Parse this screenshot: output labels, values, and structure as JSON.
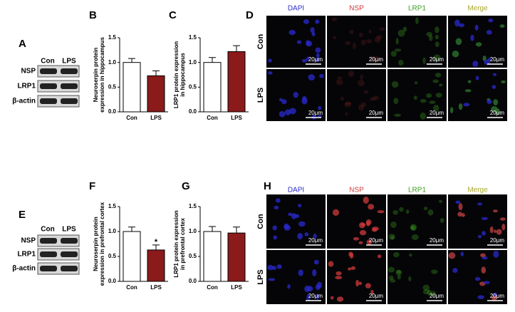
{
  "chart_data": [
    {
      "type": "bar",
      "panel": "B",
      "ylabel": [
        "Neuroserpin protein",
        "expression in hippocampus"
      ],
      "categories": [
        "Con",
        "LPS"
      ],
      "values": [
        1.0,
        0.73
      ],
      "errors": [
        0.08,
        0.1
      ],
      "colors": [
        "#ffffff",
        "#8b1a1a"
      ],
      "ylim": [
        0,
        1.5
      ],
      "yticks": [
        {
          "value": 0,
          "label": "0.0"
        },
        {
          "value": 0.5,
          "label": "0.5"
        },
        {
          "value": 1,
          "label": "1.0"
        },
        {
          "value": 1.5,
          "label": "1.5"
        }
      ]
    },
    {
      "type": "bar",
      "panel": "C",
      "ylabel": [
        "LRP1 protein expression",
        "in hippocampus"
      ],
      "categories": [
        "Con",
        "LPS"
      ],
      "values": [
        1.0,
        1.22
      ],
      "errors": [
        0.1,
        0.12
      ],
      "colors": [
        "#ffffff",
        "#8b1a1a"
      ],
      "ylim": [
        0,
        1.5
      ],
      "yticks": [
        {
          "value": 0,
          "label": "0.0"
        },
        {
          "value": 0.5,
          "label": "0.5"
        },
        {
          "value": 1,
          "label": "1.0"
        },
        {
          "value": 1.5,
          "label": "1.5"
        }
      ]
    },
    {
      "type": "bar",
      "panel": "F",
      "ylabel": [
        "Neuroserpin protein",
        "expression in prefrontal cortex"
      ],
      "categories": [
        "Con",
        "LPS"
      ],
      "values": [
        1.0,
        0.63
      ],
      "errors": [
        0.09,
        0.1
      ],
      "significance": [
        null,
        "*"
      ],
      "colors": [
        "#ffffff",
        "#8b1a1a"
      ],
      "ylim": [
        0,
        1.5
      ],
      "yticks": [
        {
          "value": 0,
          "label": "0.0"
        },
        {
          "value": 0.5,
          "label": "0.5"
        },
        {
          "value": 1,
          "label": "1.0"
        },
        {
          "value": 1.5,
          "label": "1.5"
        }
      ]
    },
    {
      "type": "bar",
      "panel": "G",
      "ylabel": [
        "LRP1 protein expression",
        "in prefrontal cortex"
      ],
      "categories": [
        "Con",
        "LPS"
      ],
      "values": [
        1.0,
        0.97
      ],
      "errors": [
        0.1,
        0.12
      ],
      "colors": [
        "#ffffff",
        "#8b1a1a"
      ],
      "ylim": [
        0,
        1.5
      ],
      "yticks": [
        {
          "value": 0,
          "label": "0.0"
        },
        {
          "value": 0.5,
          "label": "0.5"
        },
        {
          "value": 1,
          "label": "1.0"
        },
        {
          "value": 1.5,
          "label": "1.5"
        }
      ]
    }
  ],
  "blots": [
    {
      "panel": "A",
      "lanes": [
        "Con",
        "LPS"
      ],
      "rows": [
        "NSP",
        "LRP1",
        "β-actin"
      ]
    },
    {
      "panel": "E",
      "lanes": [
        "Con",
        "LPS"
      ],
      "rows": [
        "NSP",
        "LRP1",
        "β-actin"
      ]
    }
  ],
  "micrographs": [
    {
      "panel": "D",
      "channels": [
        "DAPI",
        "NSP",
        "LRP1",
        "Merge"
      ],
      "channel_colors": [
        "#2a2ad0",
        "#d03a3a",
        "#3c9c1c",
        "#a8a82a"
      ],
      "conditions": [
        "Con",
        "LPS"
      ],
      "scale_bar": "20μm"
    },
    {
      "panel": "H",
      "channels": [
        "DAPI",
        "NSP",
        "LRP1",
        "Merge"
      ],
      "channel_colors": [
        "#2a2ad0",
        "#d03a3a",
        "#3c9c1c",
        "#a8a82a"
      ],
      "conditions": [
        "Con",
        "LPS"
      ],
      "scale_bar": "20μm"
    }
  ]
}
